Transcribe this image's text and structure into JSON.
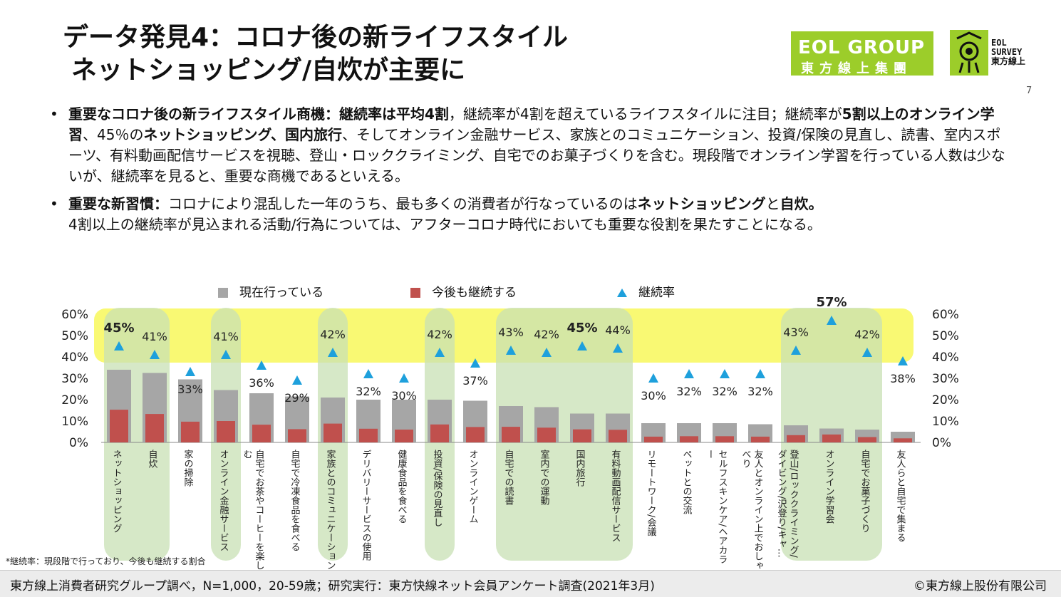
{
  "header": {
    "title_line1": "データ発見4：コロナ後の新ライフスタイル",
    "title_line2": "ネットショッピング/自炊が主要に",
    "logo_group_line1": "EOL GROUP",
    "logo_group_line2": "東方線上集團",
    "logo_survey_line1": "EOL",
    "logo_survey_line2": "SURVEY",
    "logo_survey_line3": "東方線上",
    "page_number": "7"
  },
  "bullets": {
    "b1_bold1": "重要なコロナ後の新ライフスタイル商機：継続率は平均4割",
    "b1_text1": "，継続率が4割を超えているライフスタイルに注目；継続率が",
    "b1_bold2": "5割以上のオンライン学習",
    "b1_text2": "、45％の",
    "b1_bold3": "ネットショッピング、国内旅行",
    "b1_text3": "、そしてオンライン金融サービス、家族とのコミュニケーション、投資/保険の見直し、読書、室内スポーツ、有料動画配信サービスを視聴、登山・ロッククライミング、自宅でのお菓子づくりを含む。現段階でオンライン学習を行っている人数は少ないが、継続率を見ると、重要な商機であるといえる。",
    "b2_bold1": "重要な新習慣：",
    "b2_text1": "コロナにより混乱した一年のうち、最も多くの消費者が行なっているのは",
    "b2_bold2": "ネットショッピング",
    "b2_text2": "と",
    "b2_bold3": "自炊。",
    "b2_text3": "4割以上の継続率が見込まれる活動/行為については、アフターコロナ時代においても重要な役割を果たすことになる。"
  },
  "chart_data": {
    "type": "bar",
    "categories": [
      "ネットショッピング",
      "自炊",
      "家の掃除",
      "オンライン金融サービス",
      "自宅でお茶やコーヒーを楽しむ",
      "自宅で冷凍食品を食べる",
      "家族とのコミュニケーション",
      "デリバリーサービスの使用",
      "健康食品を食べる",
      "投資/保険の見直し",
      "オンラインゲーム",
      "自宅での読書",
      "室内での運動",
      "国内旅行",
      "有料動画配信サービス",
      "リモートワーク/会議",
      "ペットとの交流",
      "セルフスキンケア/ヘアカラー",
      "友人とオンライン上でおしゃべり",
      "登山/ロッククライミング/ダイビング/沢登り/キャ…",
      "オンライン学習会",
      "自宅でお菓子づくり",
      "友人らと自宅で集まる"
    ],
    "series": [
      {
        "name": "現在行っている",
        "values": [
          34,
          32.5,
          29.5,
          24.5,
          23,
          21.5,
          21,
          20,
          20,
          20,
          19.5,
          17,
          16.5,
          13.5,
          13.5,
          9,
          9,
          9,
          8.5,
          8,
          6.5,
          6,
          5
        ],
        "color": "#a6a6a6"
      },
      {
        "name": "今後も継続する",
        "values": [
          15.3,
          13.3,
          9.7,
          10,
          8.3,
          6.2,
          8.8,
          6.4,
          6,
          8.4,
          7.2,
          7.3,
          6.9,
          6.1,
          5.9,
          2.7,
          2.9,
          2.9,
          2.7,
          3.4,
          3.7,
          2.5,
          1.9
        ],
        "color": "#c0504d"
      },
      {
        "name": "継続率",
        "values": [
          45,
          41,
          33,
          41,
          36,
          29,
          42,
          32,
          30,
          42,
          37,
          43,
          42,
          45,
          44,
          30,
          32,
          32,
          32,
          43,
          57,
          42,
          38
        ],
        "color": "#1ea0dc"
      }
    ],
    "rate_labels": [
      "45%",
      "41%",
      "33%",
      "41%",
      "36%",
      "29%",
      "42%",
      "32%",
      "30%",
      "42%",
      "37%",
      "43%",
      "42%",
      "45%",
      "44%",
      "30%",
      "32%",
      "32%",
      "32%",
      "43%",
      "57%",
      "42%",
      "38%"
    ],
    "bold_rates": [
      0,
      13,
      20
    ],
    "highlighted_categories": [
      0,
      1,
      3,
      6,
      9,
      11,
      12,
      13,
      14,
      19,
      20,
      21
    ],
    "highlight_band": [
      40,
      60
    ],
    "y_ticks": [
      "0%",
      "10%",
      "20%",
      "30%",
      "40%",
      "50%",
      "60%"
    ],
    "ylim": [
      0,
      60
    ],
    "legend_position": "top"
  },
  "footnote": "*継続率：現段階で行っており、今後も継続する割合",
  "footer": {
    "source": "東方線上消費者研究グループ調べ，N=1,000，20-59歳；研究実行：東方快線ネット会員アンケート調査(2021年3月)",
    "copyright": "©東方線上股份有限公司"
  },
  "colors": {
    "accent_green": "#9ccd2a",
    "band_yellow": "#f4f400",
    "panel_green": "#c8e0b4"
  }
}
